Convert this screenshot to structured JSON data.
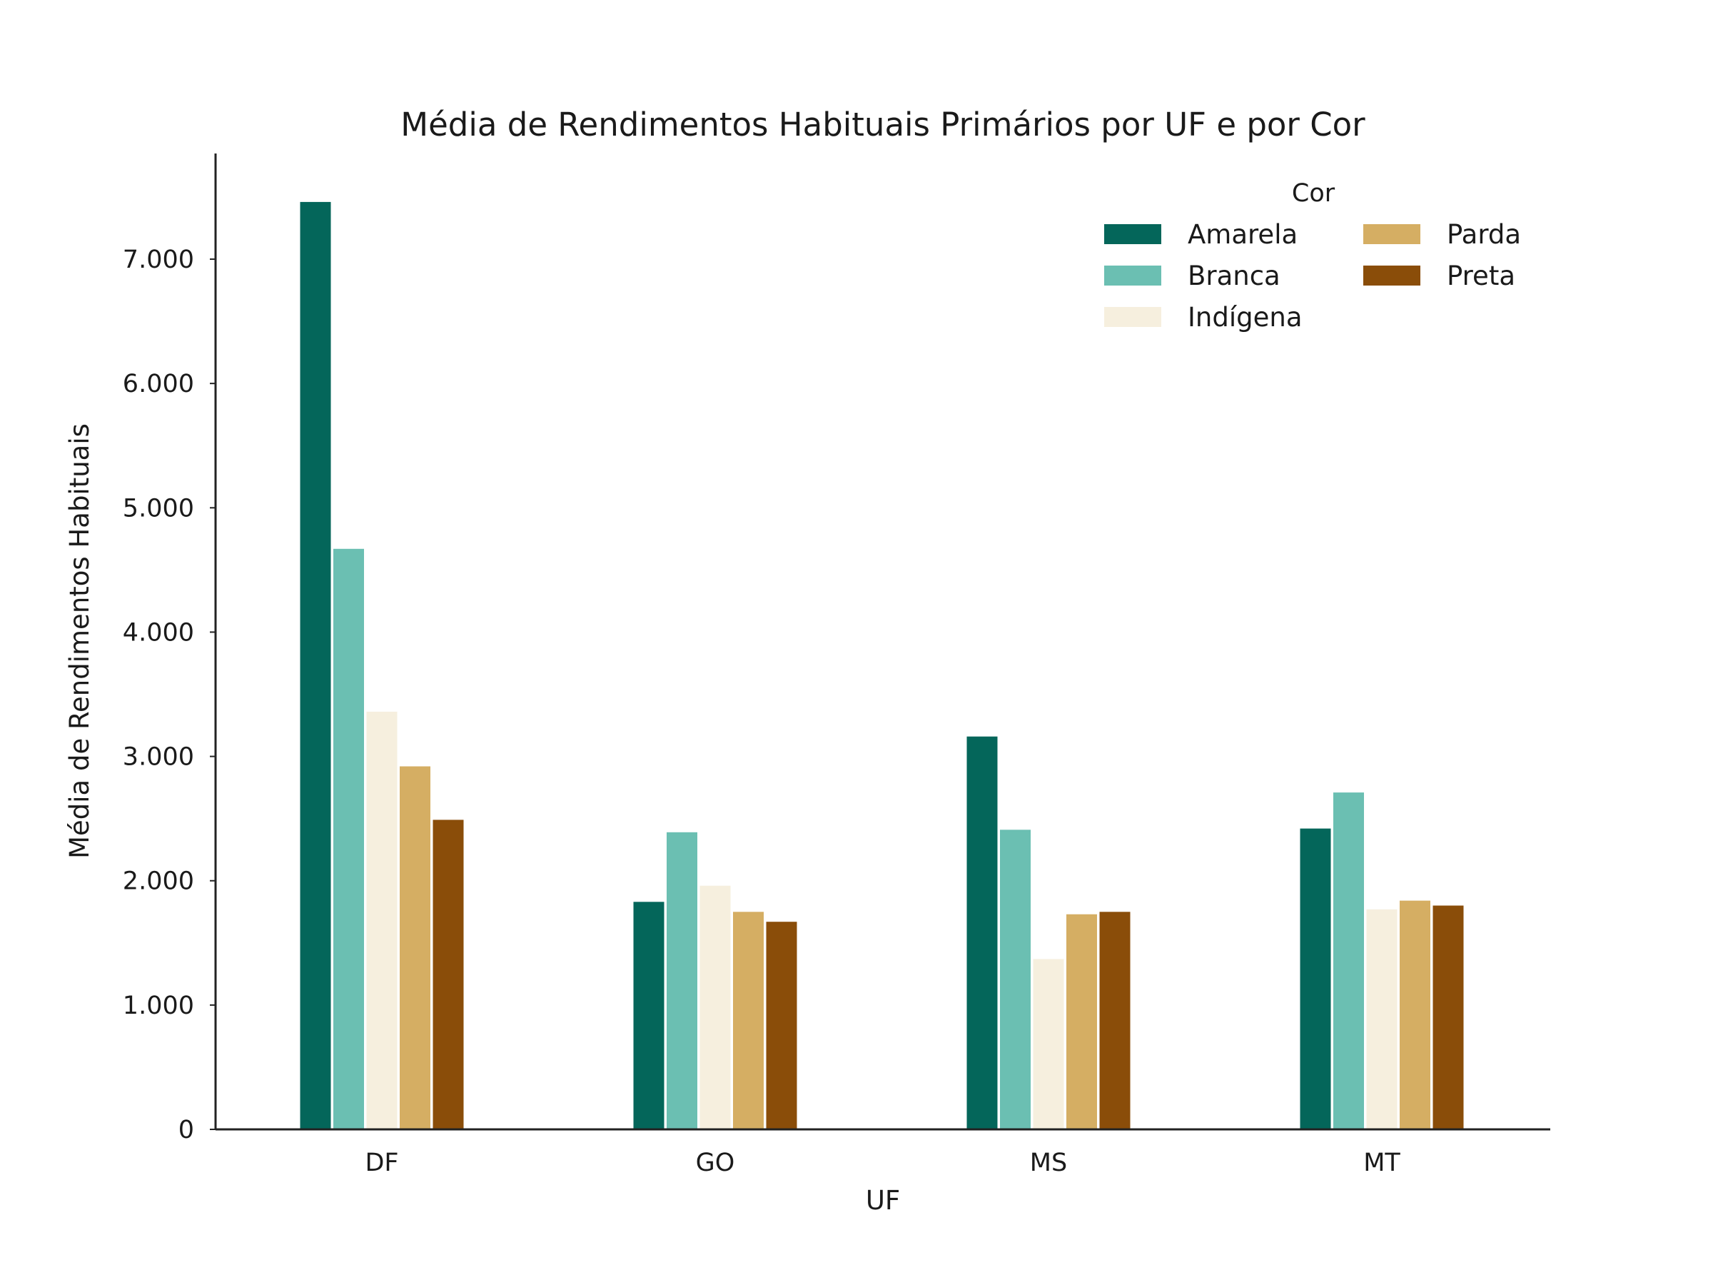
{
  "chart_data": {
    "type": "bar",
    "title": "Média de Rendimentos Habituais Primários por UF e por Cor",
    "xlabel": "UF",
    "ylabel": "Média de Rendimentos Habituais",
    "categories": [
      "DF",
      "GO",
      "MS",
      "MT"
    ],
    "ylim": [
      0,
      7850
    ],
    "yticks": [
      0,
      1000,
      2000,
      3000,
      4000,
      5000,
      6000,
      7000
    ],
    "ytick_labels": [
      "0",
      "1.000",
      "2.000",
      "3.000",
      "4.000",
      "5.000",
      "6.000",
      "7.000"
    ],
    "grid": false,
    "legend": {
      "title": "Cor",
      "position": "top-right",
      "columns": 2
    },
    "series": [
      {
        "name": "Amarela",
        "color": "#04665a",
        "values": [
          7460,
          1830,
          3160,
          2420
        ]
      },
      {
        "name": "Branca",
        "color": "#6bbfb2",
        "values": [
          4670,
          2390,
          2410,
          2710
        ]
      },
      {
        "name": "Indígena",
        "color": "#f6efde",
        "values": [
          3360,
          1960,
          1370,
          1770
        ]
      },
      {
        "name": "Parda",
        "color": "#d5ae63",
        "values": [
          2920,
          1750,
          1730,
          1840
        ]
      },
      {
        "name": "Preta",
        "color": "#8a4d09",
        "values": [
          2490,
          1670,
          1750,
          1800
        ]
      }
    ]
  }
}
